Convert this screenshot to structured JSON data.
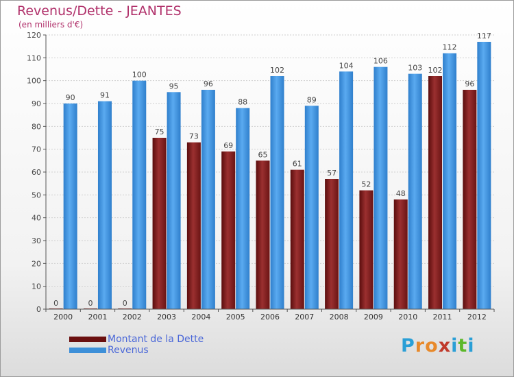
{
  "chart_data": {
    "type": "bar",
    "title": "Revenus/Dette - JEANTES",
    "subtitle": "(en milliers d'€)",
    "categories": [
      "2000",
      "2001",
      "2002",
      "2003",
      "2004",
      "2005",
      "2006",
      "2007",
      "2008",
      "2009",
      "2010",
      "2011",
      "2012"
    ],
    "series": [
      {
        "name": "Montant de la Dette",
        "color": "#7a1a1a",
        "values": [
          0,
          0,
          0,
          75,
          73,
          69,
          65,
          61,
          57,
          52,
          48,
          102,
          96
        ]
      },
      {
        "name": "Revenus",
        "color": "#3d8fd8",
        "values": [
          90,
          91,
          100,
          95,
          96,
          88,
          102,
          89,
          104,
          106,
          103,
          112,
          117
        ]
      }
    ],
    "ylim": [
      0,
      120
    ],
    "yticks": [
      0,
      10,
      20,
      30,
      40,
      50,
      60,
      70,
      80,
      90,
      100,
      110,
      120
    ],
    "grid": true,
    "legend_position": "bottom-left"
  },
  "logo": {
    "letters": [
      "P",
      "r",
      "o",
      "x",
      "i",
      "t",
      "i"
    ],
    "colors": [
      "#2a9fd6",
      "#e8892a",
      "#e8892a",
      "#c0392b",
      "#2a9fd6",
      "#5cb82a",
      "#2a9fd6"
    ]
  }
}
